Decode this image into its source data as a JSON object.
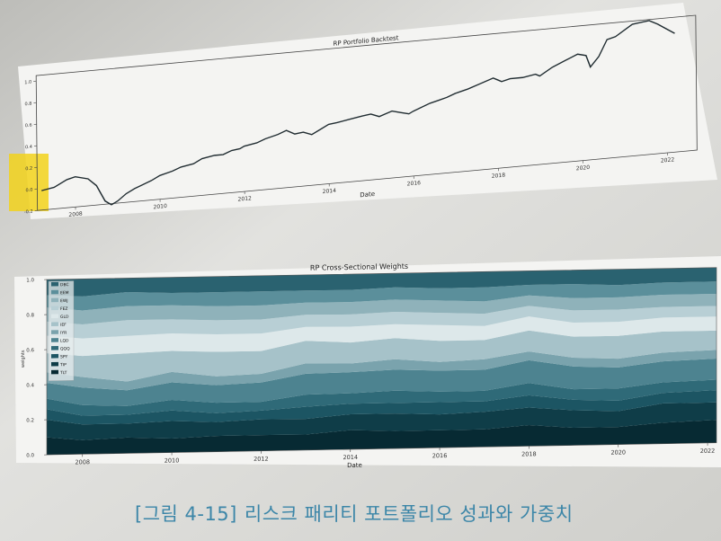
{
  "caption": {
    "figure_tag": "[그림 4-15]",
    "text": "리스크 패리티 포트폴리오 성과와 가중치"
  },
  "chart_data": [
    {
      "type": "line",
      "title": "RP Portfolio Backtest",
      "xlabel": "Date",
      "ylabel": "",
      "x_ticks": [
        "2008",
        "2010",
        "2012",
        "2014",
        "2016",
        "2018",
        "2020",
        "2022"
      ],
      "y_ticks": [
        "-0.2",
        "0.0",
        "0.2",
        "0.4",
        "0.6",
        "0.8",
        "1.0"
      ],
      "ylim": [
        -0.2,
        1.05
      ],
      "xlim": [
        2007.1,
        2022.7
      ],
      "grid": false,
      "series": [
        {
          "x": [
            2007.2,
            2007.5,
            2007.8,
            2008.0,
            2008.3,
            2008.5,
            2008.7,
            2008.85,
            2009.0,
            2009.2,
            2009.4,
            2009.6,
            2009.8,
            2010.0,
            2010.3,
            2010.5,
            2010.8,
            2011.0,
            2011.3,
            2011.5,
            2011.7,
            2011.9,
            2012.0,
            2012.3,
            2012.5,
            2012.8,
            2013.0,
            2013.2,
            2013.4,
            2013.6,
            2013.8,
            2014.0,
            2014.2,
            2014.5,
            2014.8,
            2015.0,
            2015.2,
            2015.5,
            2015.7,
            2015.9,
            2016.0,
            2016.2,
            2016.4,
            2016.6,
            2016.8,
            2017.0,
            2017.3,
            2017.6,
            2017.9,
            2018.0,
            2018.1,
            2018.3,
            2018.6,
            2018.9,
            2019.0,
            2019.3,
            2019.6,
            2019.9,
            2020.1,
            2020.2,
            2020.4,
            2020.6,
            2020.8,
            2021.0,
            2021.2,
            2021.4,
            2021.6,
            2021.8,
            2022.0,
            2022.2
          ],
          "y": [
            -0.02,
            0.0,
            0.06,
            0.08,
            0.05,
            -0.02,
            -0.17,
            -0.21,
            -0.18,
            -0.12,
            -0.08,
            -0.05,
            -0.02,
            0.02,
            0.05,
            0.08,
            0.1,
            0.14,
            0.16,
            0.16,
            0.19,
            0.2,
            0.22,
            0.24,
            0.27,
            0.3,
            0.33,
            0.29,
            0.3,
            0.27,
            0.31,
            0.35,
            0.36,
            0.38,
            0.4,
            0.41,
            0.38,
            0.42,
            0.4,
            0.38,
            0.4,
            0.43,
            0.46,
            0.48,
            0.5,
            0.53,
            0.56,
            0.6,
            0.64,
            0.62,
            0.6,
            0.62,
            0.62,
            0.64,
            0.62,
            0.69,
            0.74,
            0.79,
            0.77,
            0.66,
            0.75,
            0.9,
            0.92,
            0.97,
            1.02,
            1.03,
            1.04,
            1.0,
            0.95,
            0.9
          ]
        }
      ]
    },
    {
      "type": "area",
      "stacked": true,
      "title": "RP Cross-Sectional Weights",
      "xlabel": "Date",
      "ylabel": "weights",
      "x_ticks": [
        "2008",
        "2010",
        "2012",
        "2014",
        "2016",
        "2018",
        "2020",
        "2022"
      ],
      "y_ticks": [
        "0.0",
        "0.2",
        "0.4",
        "0.6",
        "0.8",
        "1.0"
      ],
      "ylim": [
        0,
        1
      ],
      "legend_position": "upper-left",
      "x": [
        2007.2,
        2008.0,
        2009.0,
        2010.0,
        2011.0,
        2012.0,
        2013.0,
        2014.0,
        2015.0,
        2016.0,
        2017.0,
        2018.0,
        2019.0,
        2020.0,
        2021.0,
        2022.2
      ],
      "series": [
        {
          "name": "TLT",
          "color": "#072a33",
          "values": [
            0.1,
            0.08,
            0.09,
            0.08,
            0.09,
            0.09,
            0.09,
            0.11,
            0.1,
            0.1,
            0.1,
            0.12,
            0.1,
            0.1,
            0.12,
            0.13
          ]
        },
        {
          "name": "TIP",
          "color": "#0f3d48",
          "values": [
            0.1,
            0.09,
            0.08,
            0.1,
            0.08,
            0.09,
            0.09,
            0.09,
            0.1,
            0.09,
            0.1,
            0.1,
            0.1,
            0.09,
            0.11,
            0.1
          ]
        },
        {
          "name": "SPY",
          "color": "#1c5563",
          "values": [
            0.06,
            0.05,
            0.05,
            0.06,
            0.05,
            0.05,
            0.07,
            0.06,
            0.06,
            0.07,
            0.06,
            0.07,
            0.06,
            0.06,
            0.06,
            0.07
          ]
        },
        {
          "name": "QQQ",
          "color": "#2f6a78",
          "values": [
            0.06,
            0.06,
            0.05,
            0.06,
            0.06,
            0.05,
            0.07,
            0.06,
            0.07,
            0.06,
            0.06,
            0.07,
            0.06,
            0.07,
            0.06,
            0.06
          ]
        },
        {
          "name": "LQD",
          "color": "#4d8390",
          "values": [
            0.09,
            0.1,
            0.09,
            0.1,
            0.1,
            0.11,
            0.12,
            0.12,
            0.12,
            0.12,
            0.12,
            0.13,
            0.13,
            0.12,
            0.12,
            0.12
          ]
        },
        {
          "name": "IYR",
          "color": "#7aa3ad",
          "values": [
            0.06,
            0.06,
            0.05,
            0.06,
            0.05,
            0.05,
            0.06,
            0.05,
            0.06,
            0.05,
            0.06,
            0.05,
            0.05,
            0.05,
            0.05,
            0.05
          ]
        },
        {
          "name": "IEF",
          "color": "#a6c2c9",
          "values": [
            0.11,
            0.12,
            0.16,
            0.12,
            0.14,
            0.13,
            0.13,
            0.12,
            0.12,
            0.12,
            0.11,
            0.12,
            0.12,
            0.13,
            0.12,
            0.11
          ]
        },
        {
          "name": "GLD",
          "color": "#dde8ea",
          "values": [
            0.1,
            0.1,
            0.1,
            0.1,
            0.1,
            0.1,
            0.08,
            0.09,
            0.08,
            0.09,
            0.08,
            0.08,
            0.08,
            0.08,
            0.08,
            0.08
          ]
        },
        {
          "name": "FEZ",
          "color": "#b8cfd5",
          "values": [
            0.08,
            0.08,
            0.09,
            0.08,
            0.08,
            0.08,
            0.07,
            0.07,
            0.07,
            0.07,
            0.07,
            0.06,
            0.07,
            0.07,
            0.06,
            0.06
          ]
        },
        {
          "name": "EWJ",
          "color": "#8fb2ba",
          "values": [
            0.08,
            0.08,
            0.08,
            0.08,
            0.08,
            0.08,
            0.07,
            0.07,
            0.07,
            0.07,
            0.07,
            0.06,
            0.07,
            0.07,
            0.07,
            0.07
          ]
        },
        {
          "name": "EEM",
          "color": "#5b8f9b",
          "values": [
            0.07,
            0.08,
            0.08,
            0.07,
            0.08,
            0.08,
            0.07,
            0.07,
            0.07,
            0.07,
            0.08,
            0.06,
            0.08,
            0.07,
            0.07,
            0.07
          ]
        },
        {
          "name": "DBC",
          "color": "#2a6270",
          "values": [
            0.09,
            0.1,
            0.08,
            0.09,
            0.09,
            0.09,
            0.09,
            0.09,
            0.08,
            0.09,
            0.09,
            0.08,
            0.08,
            0.09,
            0.08,
            0.08
          ]
        }
      ]
    }
  ]
}
